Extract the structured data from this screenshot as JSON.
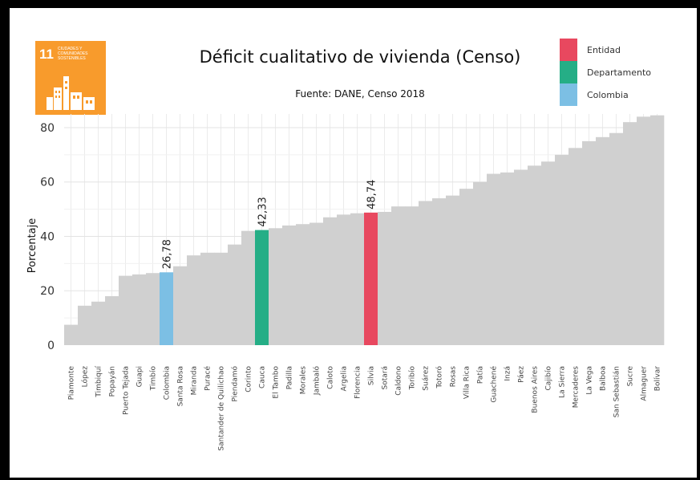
{
  "ods_badge": {
    "number": "11",
    "text_lines": [
      "CIUDADES Y",
      "COMUNIDADES",
      "SOSTENIBLES"
    ],
    "color": "#F89B2C"
  },
  "chart_data": {
    "type": "bar",
    "title": "Déficit cualitativo de vivienda (Censo)",
    "subtitle": "Fuente: DANE, Censo 2018",
    "xlabel": "",
    "ylabel": "Porcentaje",
    "ylim": [
      0,
      85
    ],
    "yticks": [
      "0",
      "20",
      "40",
      "60",
      "80"
    ],
    "grid": true,
    "legend_position": "top-right",
    "legend": [
      {
        "label": "Entidad",
        "color": "#E8485F"
      },
      {
        "label": "Departamento",
        "color": "#25AE86"
      },
      {
        "label": "Colombia",
        "color": "#7CBFE4"
      }
    ],
    "default_color": "#D0D0D0",
    "categories": [
      "Piamonte",
      "López",
      "Timbiquí",
      "Popayán",
      "Puerto Tejada",
      "Guapi",
      "Timbío",
      "Colombia",
      "Santa Rosa",
      "Miranda",
      "Puracé",
      "Santander de Quilichao",
      "Piendamó",
      "Corinto",
      "Cauca",
      "El Tambo",
      "Padilla",
      "Morales",
      "Jambaló",
      "Caloto",
      "Argelia",
      "Florencia",
      "Silvia",
      "Sotará",
      "Caldono",
      "Toribío",
      "Suárez",
      "Totoró",
      "Rosas",
      "Villa Rica",
      "Patía",
      "Guachené",
      "Inzá",
      "Páez",
      "Buenos Aires",
      "Cajibío",
      "La Sierra",
      "Mercaderes",
      "La Vega",
      "Balboa",
      "San Sebastián",
      "Sucre",
      "Almaguer",
      "Bolívar"
    ],
    "values": [
      7.5,
      14.5,
      16,
      18,
      25.5,
      26,
      26.5,
      26.78,
      29,
      33,
      34,
      34,
      37,
      42,
      42.33,
      43,
      44,
      44.5,
      45,
      47,
      48,
      48.5,
      48.74,
      49,
      51,
      51,
      53,
      54,
      55,
      57.5,
      60,
      63,
      63.5,
      64.5,
      66,
      67.5,
      70,
      72.5,
      75,
      76.5,
      78,
      82,
      84,
      84.5
    ],
    "highlights": {
      "Silvia": "Entidad",
      "Cauca": "Departamento",
      "Colombia": "Colombia"
    },
    "data_labels": [
      {
        "category": "Colombia",
        "text": "26,78"
      },
      {
        "category": "Cauca",
        "text": "42,33"
      },
      {
        "category": "Silvia",
        "text": "48,74"
      }
    ]
  }
}
